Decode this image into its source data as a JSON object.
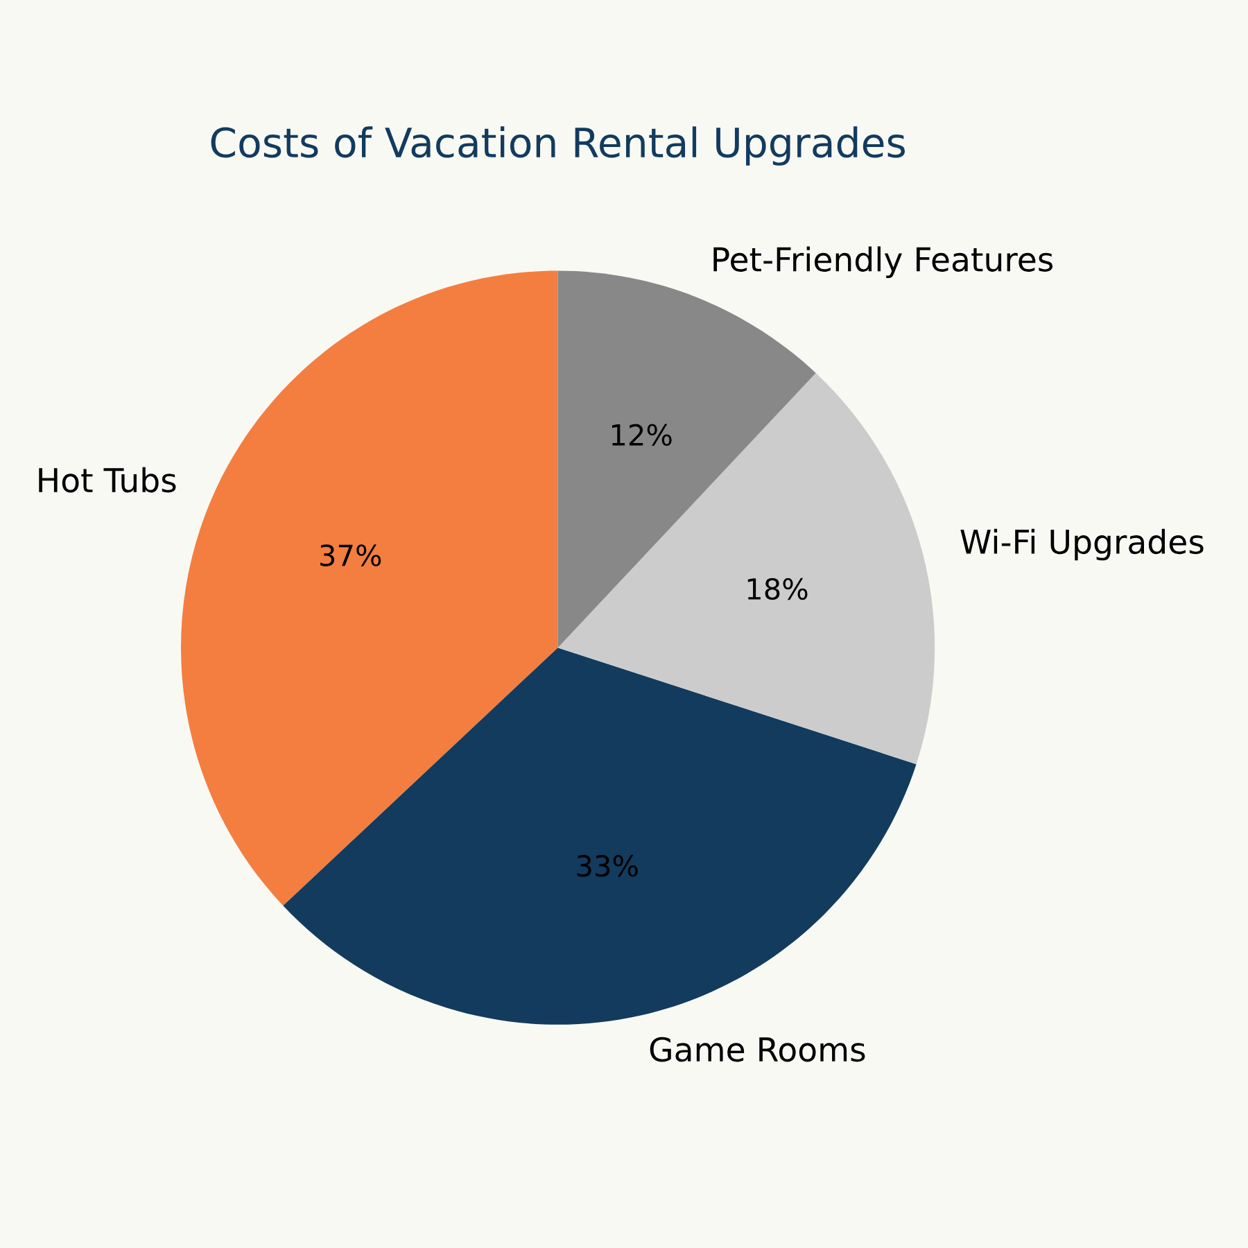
{
  "chart_data": {
    "type": "pie",
    "title": "Costs of Vacation Rental Upgrades",
    "categories": [
      "Hot Tubs",
      "Game Rooms",
      "Wi-Fi Upgrades",
      "Pet-Friendly Features"
    ],
    "values": [
      37,
      33,
      18,
      12
    ],
    "value_labels": [
      "37%",
      "33%",
      "18%",
      "12%"
    ],
    "colors": [
      "#f37e40",
      "#123b5e",
      "#cccccc",
      "#888888"
    ]
  }
}
